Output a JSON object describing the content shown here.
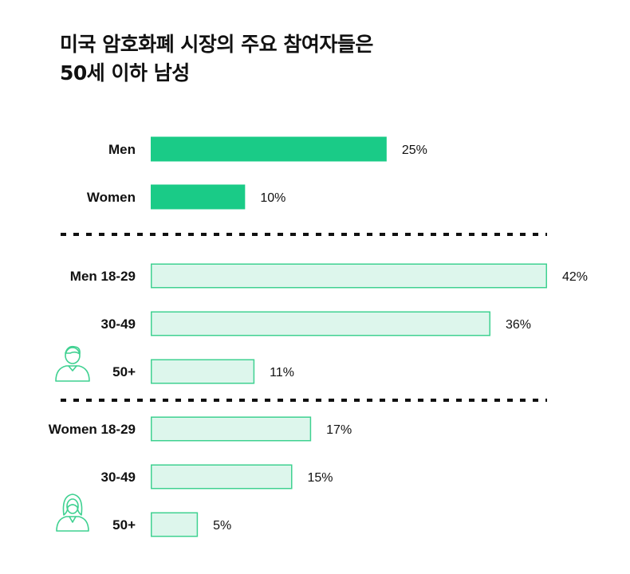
{
  "title_lines": [
    "미국 암호화폐 시장의 주요 참여자들은",
    "50세 이하 남성"
  ],
  "colors": {
    "solid_fill": "#1ACB87",
    "light_fill": "#DDF6EC",
    "light_stroke": "#3FD191",
    "divider": "#111111",
    "icon": "#3FD191"
  },
  "icons": [
    "man-icon",
    "woman-icon"
  ],
  "chart_data": {
    "type": "bar",
    "orientation": "horizontal",
    "unit": "%",
    "groups": [
      {
        "name": "gender",
        "style": "solid",
        "categories": [
          "Men",
          "Women"
        ],
        "values": [
          25,
          10
        ],
        "value_labels": [
          "25%",
          "10%"
        ]
      },
      {
        "name": "men-by-age",
        "style": "light",
        "icon": "man-icon",
        "categories": [
          "Men 18-29",
          "30-49",
          "50+"
        ],
        "values": [
          42,
          36,
          11
        ],
        "value_labels": [
          "42%",
          "36%",
          "11%"
        ]
      },
      {
        "name": "women-by-age",
        "style": "light",
        "icon": "woman-icon",
        "categories": [
          "Women 18-29",
          "30-49",
          "50+"
        ],
        "values": [
          17,
          15,
          5
        ],
        "value_labels": [
          "17%",
          "15%",
          "5%"
        ]
      }
    ],
    "xlim": [
      0,
      42
    ],
    "grid": false,
    "legend": "none"
  }
}
